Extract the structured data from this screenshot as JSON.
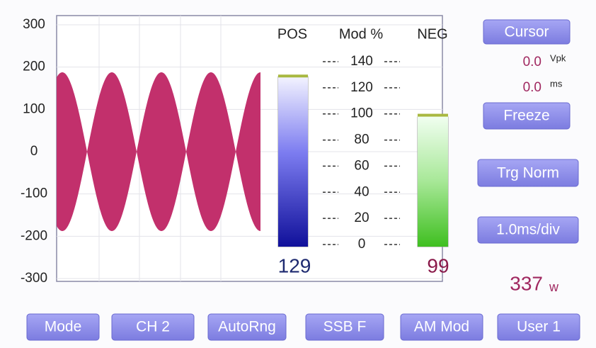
{
  "scope": {
    "yticks": [
      300,
      200,
      100,
      0,
      -100,
      -200,
      -300
    ]
  },
  "meters": {
    "pos_label": "POS",
    "scale_label": "Mod %",
    "neg_label": "NEG",
    "ticks": [
      140,
      120,
      100,
      80,
      60,
      40,
      20,
      0
    ],
    "pos_value": 129,
    "neg_value": 99
  },
  "side": {
    "cursor": "Cursor",
    "vpk_value": "0.0",
    "vpk_unit": "Vpk",
    "ms_value": "0.0",
    "ms_unit": "ms",
    "freeze": "Freeze",
    "trigger": "Trg Norm",
    "timebase": "1.0ms/div",
    "power_value": "337",
    "power_unit": "w"
  },
  "buttons": [
    "Mode",
    "CH 2",
    "AutoRng",
    "SSB F",
    "AM Mod",
    "User 1"
  ]
}
